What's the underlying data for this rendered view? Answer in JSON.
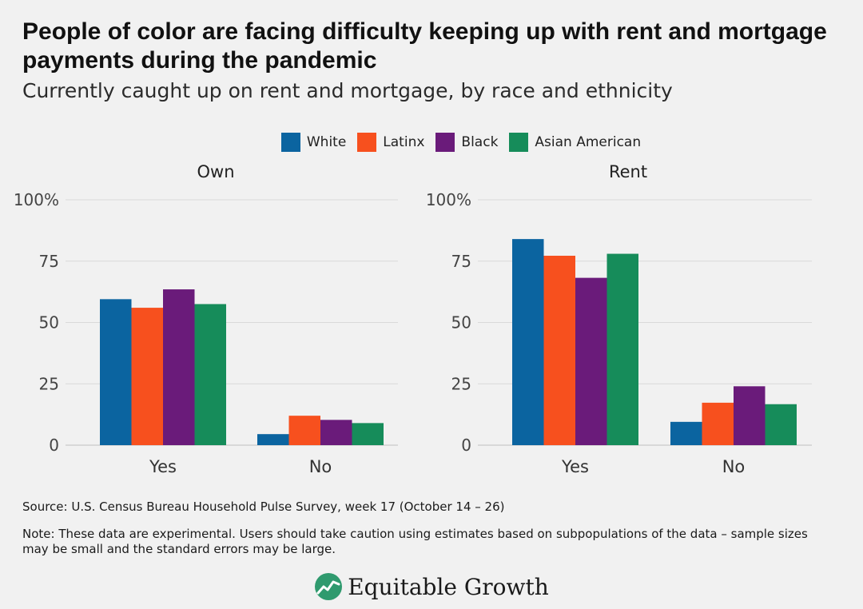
{
  "title": "People of color are facing difficulty keeping up with rent and mortgage payments during the pandemic",
  "subtitle": "Currently caught up on rent and mortgage, by race and ethnicity",
  "source": "Source: U.S. Census Bureau Household Pulse Survey, week 17 (October 14 – 26)",
  "note": "Note: These data are experimental. Users should take caution using estimates based on subpopulations of the data – sample sizes may be small and the standard errors may be large.",
  "logo": {
    "text": "Equitable Growth",
    "icon": "growth-chart-icon"
  },
  "legend": [
    {
      "name": "White",
      "color": "#0b64a0"
    },
    {
      "name": "Latinx",
      "color": "#f7501e"
    },
    {
      "name": "Black",
      "color": "#6a1b7a"
    },
    {
      "name": "Asian American",
      "color": "#168c5a"
    }
  ],
  "chart_data": [
    {
      "type": "bar",
      "title": "Own",
      "categories": [
        "Yes",
        "No"
      ],
      "ylim": [
        0,
        100
      ],
      "yticks": [
        0,
        25,
        50,
        75,
        100
      ],
      "ytick_labels": [
        "0",
        "25",
        "50",
        "75",
        "100%"
      ],
      "grid": true,
      "legend_position": "top-center",
      "series": [
        {
          "name": "White",
          "values": [
            59.5,
            4.5
          ]
        },
        {
          "name": "Latinx",
          "values": [
            56,
            12
          ]
        },
        {
          "name": "Black",
          "values": [
            63.5,
            10.3
          ]
        },
        {
          "name": "Asian American",
          "values": [
            57.5,
            9
          ]
        }
      ]
    },
    {
      "type": "bar",
      "title": "Rent",
      "categories": [
        "Yes",
        "No"
      ],
      "ylim": [
        0,
        100
      ],
      "yticks": [
        0,
        25,
        50,
        75,
        100
      ],
      "ytick_labels": [
        "0",
        "25",
        "50",
        "75",
        "100%"
      ],
      "grid": true,
      "legend_position": "top-center",
      "series": [
        {
          "name": "White",
          "values": [
            84,
            9.5
          ]
        },
        {
          "name": "Latinx",
          "values": [
            77.2,
            17.3
          ]
        },
        {
          "name": "Black",
          "values": [
            68.2,
            24
          ]
        },
        {
          "name": "Asian American",
          "values": [
            78,
            16.7
          ]
        }
      ]
    }
  ]
}
